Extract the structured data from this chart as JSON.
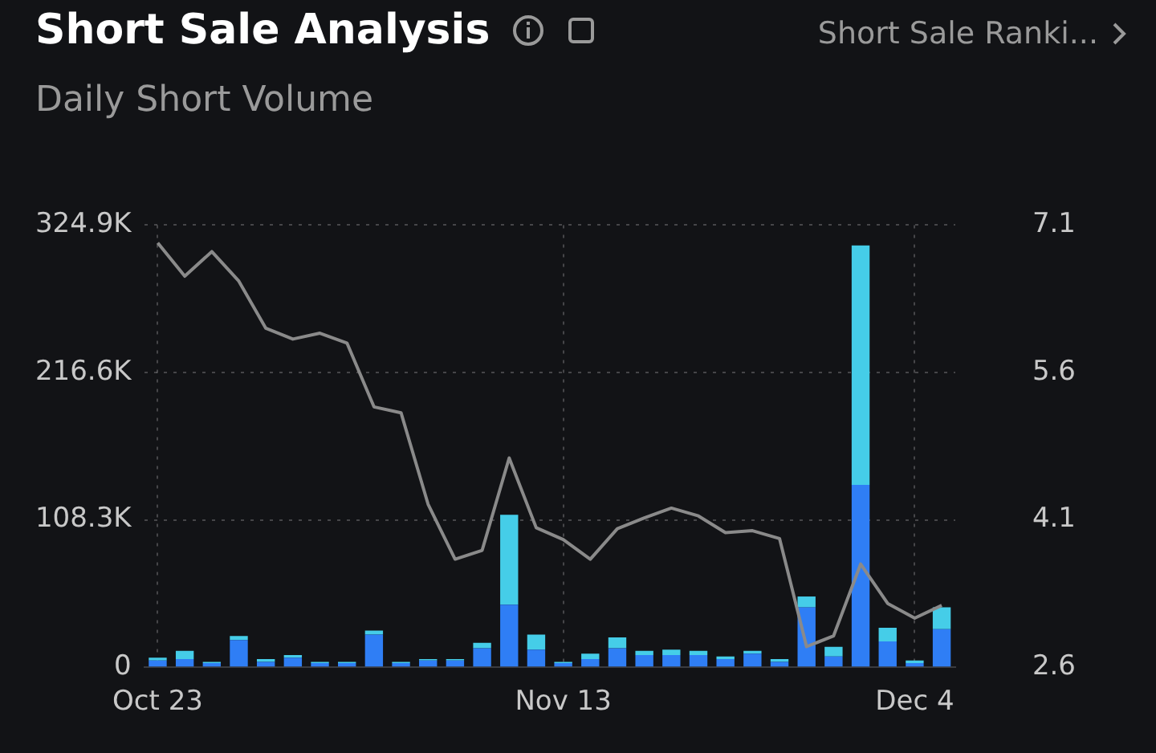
{
  "chart_data": {
    "type": "bar",
    "title": "Short Sale Analysis",
    "subtitle": "Daily Short Volume",
    "annotations": [
      "Short Sale Ranki..."
    ],
    "categories": [
      "Oct 23",
      null,
      null,
      null,
      null,
      null,
      null,
      null,
      null,
      null,
      null,
      null,
      null,
      null,
      null,
      "Nov 13",
      null,
      null,
      null,
      null,
      null,
      null,
      null,
      null,
      null,
      null,
      null,
      null,
      "Dec 4",
      null
    ],
    "stacked": true,
    "series": [
      {
        "color": "#2f7ef5",
        "values": [
          5000,
          6000,
          3000,
          20000,
          4000,
          7000,
          3000,
          3000,
          24000,
          3000,
          5000,
          5000,
          14000,
          46000,
          13000,
          3000,
          6000,
          14000,
          9000,
          9000,
          9000,
          6000,
          10000,
          4000,
          44000,
          8000,
          134000,
          19000,
          3000,
          28000
        ]
      },
      {
        "color": "#45cde8",
        "values": [
          2000,
          6000,
          1000,
          3000,
          2000,
          2000,
          1000,
          1000,
          3000,
          1000,
          1000,
          1000,
          4000,
          66000,
          11000,
          1000,
          4000,
          8000,
          3000,
          4000,
          3000,
          2000,
          2000,
          2000,
          8000,
          7000,
          176000,
          10000,
          2000,
          16000
        ]
      },
      {
        "type": "line",
        "axis": "y2",
        "color": "#8a8a8a",
        "values": [
          6.92,
          6.58,
          6.83,
          6.53,
          6.05,
          5.94,
          6.0,
          5.9,
          5.25,
          5.19,
          4.26,
          3.7,
          3.79,
          4.73,
          4.02,
          3.9,
          3.7,
          4.01,
          4.12,
          4.22,
          4.14,
          3.97,
          3.99,
          3.91,
          2.81,
          2.92,
          3.65,
          3.25,
          3.1,
          3.23
        ]
      }
    ],
    "ylim": [
      0,
      324900
    ],
    "yticks": [
      0,
      {
        "value": 108300,
        "label": "108.3K"
      },
      {
        "value": 216600,
        "label": "216.6K"
      },
      {
        "value": 324900,
        "label": "324.9K"
      }
    ],
    "y2lim": [
      2.6,
      7.1
    ],
    "y2ticks": [
      2.6,
      4.1,
      5.6,
      7.1
    ],
    "grid": true,
    "legend": false
  }
}
